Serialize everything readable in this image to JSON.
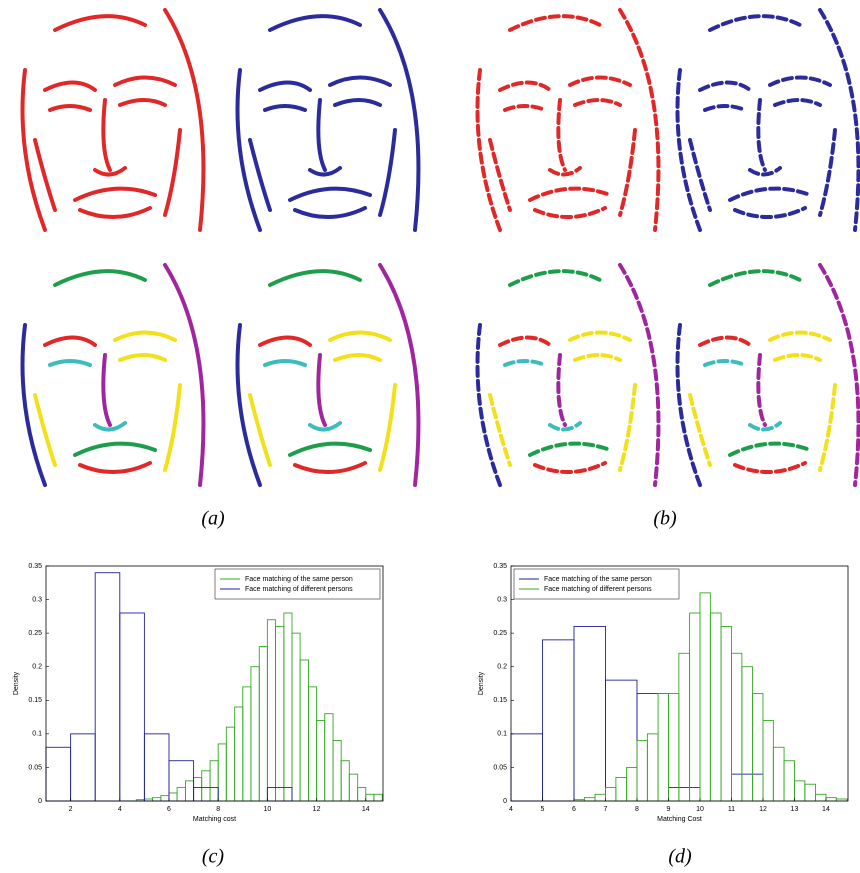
{
  "captions": [
    "(a)",
    "(b)",
    "(c)",
    "(d)"
  ],
  "chart_data": [
    {
      "type": "histogram",
      "xlabel": "Matching cost",
      "ylabel": "Density",
      "xlim": [
        1,
        14.7
      ],
      "ylim": [
        0,
        0.35
      ],
      "xticks": [
        2,
        4,
        6,
        8,
        10,
        12,
        14
      ],
      "yticks": [
        0,
        0.05,
        0.1,
        0.15,
        0.2,
        0.25,
        0.3,
        0.35
      ],
      "legend": "upper right",
      "series": [
        {
          "name": "Face matching of the same person",
          "color": "#33aa22",
          "bins": [
            4.67,
            5,
            5.33,
            5.67,
            6,
            6.33,
            6.67,
            7,
            7.33,
            7.67,
            8,
            8.33,
            8.67,
            9,
            9.33,
            9.67,
            10,
            10.33,
            10.67,
            11,
            11.33,
            11.67,
            12,
            12.33,
            12.67,
            13,
            13.33,
            13.67,
            14,
            14.33,
            14.67
          ],
          "values": [
            0.002,
            0.003,
            0.005,
            0.008,
            0.012,
            0.02,
            0.03,
            0.035,
            0.045,
            0.06,
            0.085,
            0.11,
            0.14,
            0.17,
            0.2,
            0.23,
            0.27,
            0.26,
            0.28,
            0.25,
            0.21,
            0.17,
            0.12,
            0.13,
            0.09,
            0.06,
            0.04,
            0.02,
            0.01,
            0.01
          ]
        },
        {
          "name": "Face matching of different persons",
          "color": "#22229a",
          "bins": [
            1,
            2,
            3,
            4,
            5,
            6,
            7,
            8,
            9,
            10,
            11
          ],
          "values": [
            0.08,
            0.1,
            0.34,
            0.28,
            0.1,
            0.06,
            0.02,
            0,
            0,
            0.02
          ]
        }
      ]
    },
    {
      "type": "histogram",
      "xlabel": "Matching Cost",
      "ylabel": "Density",
      "xlim": [
        4,
        14.7
      ],
      "ylim": [
        0,
        0.35
      ],
      "xticks": [
        4,
        5,
        6,
        7,
        8,
        9,
        10,
        11,
        12,
        13,
        14
      ],
      "yticks": [
        0,
        0.05,
        0.1,
        0.15,
        0.2,
        0.25,
        0.3,
        0.35
      ],
      "legend": "upper left",
      "series": [
        {
          "name": "Face matching of the same person",
          "color": "#22229a",
          "bins": [
            4,
            5,
            6,
            7,
            8,
            9,
            10,
            11,
            12
          ],
          "values": [
            0.1,
            0.24,
            0.26,
            0.18,
            0.16,
            0.02,
            0,
            0.04
          ]
        },
        {
          "name": "Face matching of different persons",
          "color": "#33aa22",
          "bins": [
            6,
            6.33,
            6.67,
            7,
            7.33,
            7.67,
            8,
            8.33,
            8.67,
            9,
            9.33,
            9.67,
            10,
            10.33,
            10.67,
            11,
            11.33,
            11.67,
            12,
            12.33,
            12.67,
            13,
            13.33,
            13.67,
            14,
            14.33,
            14.67
          ],
          "values": [
            0.002,
            0.005,
            0.01,
            0.02,
            0.035,
            0.05,
            0.09,
            0.1,
            0.16,
            0.16,
            0.22,
            0.28,
            0.31,
            0.28,
            0.26,
            0.22,
            0.2,
            0.16,
            0.12,
            0.08,
            0.06,
            0.03,
            0.025,
            0.01,
            0.005,
            0.003
          ]
        }
      ]
    }
  ]
}
